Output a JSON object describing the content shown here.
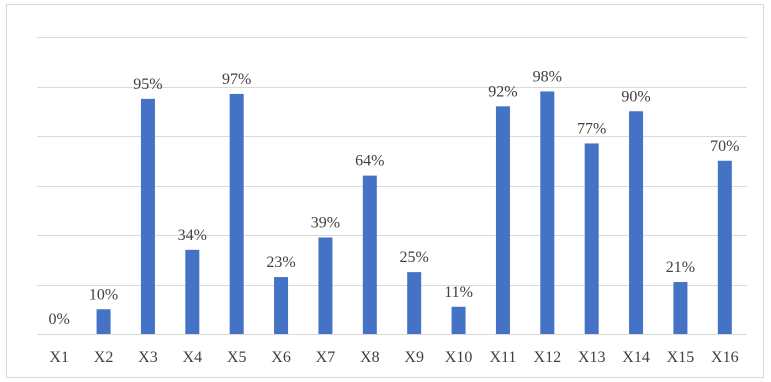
{
  "chart_data": {
    "type": "bar",
    "categories": [
      "X1",
      "X2",
      "X3",
      "X4",
      "X5",
      "X6",
      "X7",
      "X8",
      "X9",
      "X10",
      "X11",
      "X12",
      "X13",
      "X14",
      "X15",
      "X16"
    ],
    "values": [
      0,
      10,
      95,
      34,
      97,
      23,
      39,
      64,
      25,
      11,
      92,
      98,
      77,
      90,
      21,
      70
    ],
    "data_labels": [
      "0%",
      "10%",
      "95%",
      "34%",
      "97%",
      "23%",
      "39%",
      "64%",
      "25%",
      "11%",
      "92%",
      "98%",
      "77%",
      "90%",
      "21%",
      "70%"
    ],
    "title": "",
    "xlabel": "",
    "ylabel": "",
    "ylim": [
      0,
      120
    ],
    "grid": true,
    "legend": "none",
    "bar_color": "#4472c4",
    "grid_color": "#d9d9d9",
    "text_color": "#404040"
  }
}
